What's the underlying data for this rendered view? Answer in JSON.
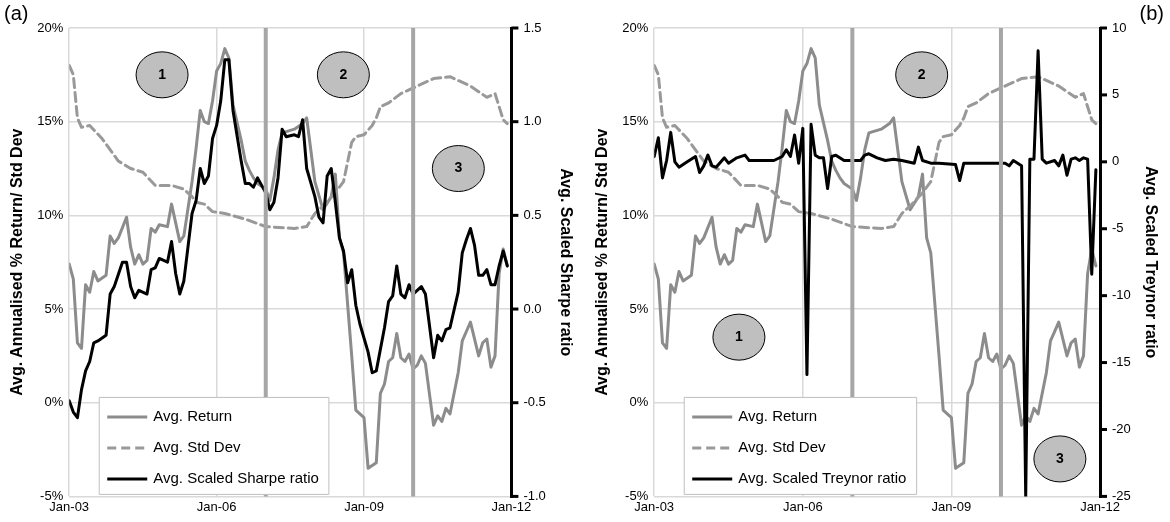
{
  "chart_data": [
    {
      "type": "line",
      "title": "(a)",
      "ylabel": "Avg. Annualised % Return/ Std Dev",
      "y2label": "Avg. Scaled Sharpe ratio",
      "marker": "none",
      "grid": true,
      "legend": "bottom left",
      "xlim": [
        "2003-01",
        "2012-01"
      ],
      "xticks": [
        {
          "value": "2003-01",
          "label": "Jan-03"
        },
        {
          "value": "2006-01",
          "label": "Jan-06"
        },
        {
          "value": "2009-01",
          "label": "Jan-09"
        },
        {
          "value": "2012-01",
          "label": "Jan-12"
        }
      ],
      "ylim": [
        -5,
        20
      ],
      "yticks": [
        {
          "value": -5,
          "label": "-5%"
        },
        {
          "value": 0,
          "label": "0%"
        },
        {
          "value": 5,
          "label": "5%"
        },
        {
          "value": 10,
          "label": "10%"
        },
        {
          "value": 15,
          "label": "15%"
        },
        {
          "value": 20,
          "label": "20%"
        }
      ],
      "y2lim": [
        -1,
        1.5
      ],
      "y2ticks": [
        {
          "value": -1,
          "label": "-1.0"
        },
        {
          "value": -0.5,
          "label": "-0.5"
        },
        {
          "value": 0,
          "label": "0.0"
        },
        {
          "value": 0.5,
          "label": "0.5"
        },
        {
          "value": 1,
          "label": "1.0"
        },
        {
          "value": 1.5,
          "label": "1.5"
        }
      ],
      "ref_lines": [
        {
          "axis": "x",
          "value": "2007-01",
          "color": "#a6a6a6"
        },
        {
          "axis": "x",
          "value": "2010-01",
          "color": "#a6a6a6"
        }
      ],
      "annotations": [
        "1",
        "2",
        "3"
      ],
      "series": [
        {
          "name": "Avg. Return",
          "color": "#8c8c8c",
          "line_style": "solid",
          "x": [
            "2003-01",
            "2003-02",
            "2003-03",
            "2003-04",
            "2003-05",
            "2003-06",
            "2003-07",
            "2003-08",
            "2003-10",
            "2003-11",
            "2003-12",
            "2004-01",
            "2004-03",
            "2004-04",
            "2004-05",
            "2004-06",
            "2004-07",
            "2004-08",
            "2004-09",
            "2004-10",
            "2004-11",
            "2005-01",
            "2005-02",
            "2005-04",
            "2005-05",
            "2005-07",
            "2005-08",
            "2005-09",
            "2005-10",
            "2005-11",
            "2005-12",
            "2006-01",
            "2006-02",
            "2006-03",
            "2006-04",
            "2006-05",
            "2006-07",
            "2006-08",
            "2006-09",
            "2006-10",
            "2006-11",
            "2007-01",
            "2007-02",
            "2007-03",
            "2007-04",
            "2007-05",
            "2007-08",
            "2007-10",
            "2007-11",
            "2007-12",
            "2008-01",
            "2008-03",
            "2008-05",
            "2008-06",
            "2008-07",
            "2008-08",
            "2008-10",
            "2008-11",
            "2009-01",
            "2009-02",
            "2009-04",
            "2009-05",
            "2009-06",
            "2009-07",
            "2009-08",
            "2009-09",
            "2009-10",
            "2009-11",
            "2009-12",
            "2010-01",
            "2010-02",
            "2010-03",
            "2010-04",
            "2010-06",
            "2010-07",
            "2010-08",
            "2010-09",
            "2010-10",
            "2010-12",
            "2011-01",
            "2011-02",
            "2011-03",
            "2011-05",
            "2011-06",
            "2011-07",
            "2011-08",
            "2011-09",
            "2011-10",
            "2011-11",
            "2011-12"
          ],
          "values": [
            7.4,
            6.6,
            3.2,
            2.9,
            6.3,
            5.9,
            7.0,
            6.5,
            6.8,
            8.9,
            8.5,
            8.8,
            9.9,
            8.3,
            7.4,
            7.9,
            7.4,
            7.6,
            9.3,
            9.1,
            9.5,
            9.4,
            10.6,
            8.6,
            8.9,
            11.8,
            13.6,
            15.6,
            15.0,
            14.9,
            16.1,
            17.7,
            18.1,
            18.9,
            18.4,
            15.9,
            14.0,
            12.9,
            12.4,
            12.0,
            11.7,
            11.4,
            10.8,
            12.0,
            13.5,
            14.4,
            14.6,
            14.9,
            15.2,
            13.5,
            11.8,
            10.3,
            11.0,
            12.2,
            8.8,
            8.0,
            2.5,
            -0.4,
            -0.8,
            -3.5,
            -3.2,
            0.5,
            1.0,
            2.2,
            2.4,
            3.7,
            2.4,
            2.2,
            2.6,
            1.8,
            2.0,
            2.5,
            2.1,
            -1.2,
            -0.7,
            -1.0,
            -0.3,
            -0.6,
            1.6,
            3.3,
            3.8,
            4.3,
            2.5,
            3.2,
            3.4,
            1.9,
            2.5,
            6.9,
            8.2,
            7.3
          ]
        },
        {
          "name": "Avg. Std Dev",
          "color": "#999999",
          "line_style": "dashed",
          "x": [
            "2003-01",
            "2003-02",
            "2003-03",
            "2003-04",
            "2003-06",
            "2003-09",
            "2004-01",
            "2004-04",
            "2004-07",
            "2004-10",
            "2005-02",
            "2005-05",
            "2005-07",
            "2005-08",
            "2005-10",
            "2005-12",
            "2006-03",
            "2006-08",
            "2007-01",
            "2007-08",
            "2007-11",
            "2008-01",
            "2008-03",
            "2008-06",
            "2008-08",
            "2008-10",
            "2008-11",
            "2009-01",
            "2009-03",
            "2009-04",
            "2009-05",
            "2009-07",
            "2009-10",
            "2010-01",
            "2010-03",
            "2010-06",
            "2010-10",
            "2010-12",
            "2011-03",
            "2011-05",
            "2011-07",
            "2011-09",
            "2011-10",
            "2011-11",
            "2011-12"
          ],
          "values": [
            18.0,
            17.5,
            15.2,
            14.7,
            14.8,
            14.1,
            12.9,
            12.5,
            12.3,
            11.6,
            11.6,
            11.4,
            11.0,
            10.7,
            10.6,
            10.2,
            10.1,
            9.8,
            9.4,
            9.3,
            9.4,
            10.1,
            10.5,
            11.2,
            11.8,
            13.9,
            14.2,
            14.3,
            14.8,
            15.2,
            15.8,
            16.0,
            16.5,
            16.8,
            17.0,
            17.3,
            17.4,
            17.2,
            16.9,
            16.6,
            16.3,
            16.5,
            15.8,
            15.1,
            14.9
          ]
        },
        {
          "name": "Avg. Scaled Sharpe ratio",
          "color": "#000000",
          "line_style": "solid",
          "axis": "y2",
          "x": [
            "2003-01",
            "2003-02",
            "2003-03",
            "2003-04",
            "2003-05",
            "2003-06",
            "2003-07",
            "2003-08",
            "2003-10",
            "2003-11",
            "2003-12",
            "2004-02",
            "2004-03",
            "2004-04",
            "2004-05",
            "2004-06",
            "2004-08",
            "2004-09",
            "2004-10",
            "2004-11",
            "2005-01",
            "2005-02",
            "2005-03",
            "2005-04",
            "2005-05",
            "2005-07",
            "2005-08",
            "2005-09",
            "2005-10",
            "2005-11",
            "2005-12",
            "2006-01",
            "2006-02",
            "2006-03",
            "2006-04",
            "2006-05",
            "2006-07",
            "2006-08",
            "2006-09",
            "2006-10",
            "2006-11",
            "2007-01",
            "2007-02",
            "2007-03",
            "2007-04",
            "2007-05",
            "2007-06",
            "2007-08",
            "2007-09",
            "2007-10",
            "2007-11",
            "2008-01",
            "2008-02",
            "2008-03",
            "2008-04",
            "2008-05",
            "2008-06",
            "2008-07",
            "2008-08",
            "2008-09",
            "2008-10",
            "2008-11",
            "2008-12",
            "2009-02",
            "2009-03",
            "2009-04",
            "2009-06",
            "2009-07",
            "2009-08",
            "2009-09",
            "2009-10",
            "2009-11",
            "2009-12",
            "2010-01",
            "2010-03",
            "2010-04",
            "2010-06",
            "2010-07",
            "2010-08",
            "2010-09",
            "2010-10",
            "2010-12",
            "2011-01",
            "2011-02",
            "2011-03",
            "2011-04",
            "2011-05",
            "2011-06",
            "2011-07",
            "2011-08",
            "2011-09",
            "2011-10",
            "2011-11",
            "2011-12"
          ],
          "values": [
            -0.49,
            -0.55,
            -0.58,
            -0.43,
            -0.33,
            -0.28,
            -0.18,
            -0.17,
            -0.14,
            0.08,
            0.12,
            0.25,
            0.25,
            0.12,
            0.06,
            0.1,
            0.08,
            0.21,
            0.22,
            0.27,
            0.25,
            0.36,
            0.19,
            0.08,
            0.15,
            0.51,
            0.58,
            0.75,
            0.67,
            0.71,
            0.91,
            0.98,
            1.11,
            1.33,
            1.33,
            1.06,
            0.79,
            0.67,
            0.67,
            0.65,
            0.7,
            0.62,
            0.53,
            0.57,
            0.7,
            0.96,
            0.92,
            0.93,
            0.92,
            1.01,
            0.75,
            0.6,
            0.49,
            0.46,
            0.71,
            0.75,
            0.57,
            0.38,
            0.31,
            0.14,
            0.21,
            0.02,
            -0.08,
            -0.23,
            -0.34,
            -0.33,
            -0.1,
            0.04,
            0.07,
            0.23,
            0.08,
            0.06,
            0.13,
            0.08,
            0.12,
            0.08,
            -0.26,
            -0.14,
            -0.17,
            -0.11,
            -0.1,
            0.09,
            0.3,
            0.37,
            0.43,
            0.34,
            0.18,
            0.18,
            0.21,
            0.13,
            0.13,
            0.23,
            0.31,
            0.23
          ]
        }
      ]
    },
    {
      "type": "line",
      "title": "(b)",
      "ylabel": "Avg. Annualised % Return/ Std Dev",
      "y2label": "Avg. Scaled Treynor ratio",
      "marker": "none",
      "grid": true,
      "legend": "bottom left",
      "xlim": [
        "2003-01",
        "2012-01"
      ],
      "xticks": [
        {
          "value": "2003-01",
          "label": "Jan-03"
        },
        {
          "value": "2006-01",
          "label": "Jan-06"
        },
        {
          "value": "2009-01",
          "label": "Jan-09"
        },
        {
          "value": "2012-01",
          "label": "Jan-12"
        }
      ],
      "ylim": [
        -5,
        20
      ],
      "yticks": [
        {
          "value": -5,
          "label": "-5%"
        },
        {
          "value": 0,
          "label": "0%"
        },
        {
          "value": 5,
          "label": "5%"
        },
        {
          "value": 10,
          "label": "10%"
        },
        {
          "value": 15,
          "label": "15%"
        },
        {
          "value": 20,
          "label": "20%"
        }
      ],
      "y2lim": [
        -25,
        10
      ],
      "y2ticks": [
        -25,
        -20,
        -15,
        -10,
        -5,
        0,
        5,
        10
      ],
      "ref_lines": [
        {
          "axis": "x",
          "value": "2007-01",
          "color": "#a6a6a6"
        },
        {
          "axis": "x",
          "value": "2010-01",
          "color": "#a6a6a6"
        }
      ],
      "annotations": [
        "1",
        "2",
        "3"
      ],
      "series": [
        {
          "name": "Avg. Return",
          "color": "#8c8c8c",
          "line_style": "solid",
          "x": [
            "2003-01",
            "2003-02",
            "2003-03",
            "2003-04",
            "2003-05",
            "2003-06",
            "2003-07",
            "2003-08",
            "2003-10",
            "2003-11",
            "2003-12",
            "2004-01",
            "2004-03",
            "2004-04",
            "2004-05",
            "2004-06",
            "2004-07",
            "2004-08",
            "2004-09",
            "2004-10",
            "2004-11",
            "2005-01",
            "2005-02",
            "2005-04",
            "2005-05",
            "2005-07",
            "2005-08",
            "2005-09",
            "2005-10",
            "2005-11",
            "2005-12",
            "2006-01",
            "2006-02",
            "2006-03",
            "2006-04",
            "2006-05",
            "2006-07",
            "2006-08",
            "2006-09",
            "2006-10",
            "2006-11",
            "2007-01",
            "2007-02",
            "2007-03",
            "2007-04",
            "2007-05",
            "2007-08",
            "2007-10",
            "2007-11",
            "2007-12",
            "2008-01",
            "2008-03",
            "2008-05",
            "2008-06",
            "2008-07",
            "2008-08",
            "2008-10",
            "2008-11",
            "2009-01",
            "2009-02",
            "2009-04",
            "2009-05",
            "2009-06",
            "2009-07",
            "2009-08",
            "2009-09",
            "2009-10",
            "2009-11",
            "2009-12",
            "2010-01",
            "2010-02",
            "2010-03",
            "2010-04",
            "2010-06",
            "2010-07",
            "2010-08",
            "2010-09",
            "2010-10",
            "2010-12",
            "2011-01",
            "2011-02",
            "2011-03",
            "2011-05",
            "2011-06",
            "2011-07",
            "2011-08",
            "2011-09",
            "2011-10",
            "2011-11",
            "2011-12"
          ],
          "values": [
            7.4,
            6.6,
            3.2,
            2.9,
            6.3,
            5.9,
            7.0,
            6.5,
            6.8,
            8.9,
            8.5,
            8.8,
            9.9,
            8.3,
            7.4,
            7.9,
            7.4,
            7.6,
            9.3,
            9.1,
            9.5,
            9.4,
            10.6,
            8.6,
            8.9,
            11.8,
            13.6,
            15.6,
            15.0,
            14.9,
            16.1,
            17.7,
            18.1,
            18.9,
            18.4,
            15.9,
            14.0,
            12.9,
            12.4,
            12.0,
            11.7,
            11.4,
            10.8,
            12.0,
            13.5,
            14.4,
            14.6,
            14.9,
            15.2,
            13.5,
            11.8,
            10.3,
            11.0,
            12.2,
            8.8,
            8.0,
            2.5,
            -0.4,
            -0.8,
            -3.5,
            -3.2,
            0.5,
            1.0,
            2.2,
            2.4,
            3.7,
            2.4,
            2.2,
            2.6,
            1.8,
            2.0,
            2.5,
            2.1,
            -1.2,
            -0.7,
            -1.0,
            -0.3,
            -0.6,
            1.6,
            3.3,
            3.8,
            4.3,
            2.5,
            3.2,
            3.4,
            1.9,
            2.5,
            6.9,
            8.2,
            7.3
          ]
        },
        {
          "name": "Avg. Std Dev",
          "color": "#999999",
          "line_style": "dashed",
          "x": [
            "2003-01",
            "2003-02",
            "2003-03",
            "2003-04",
            "2003-06",
            "2003-09",
            "2004-01",
            "2004-04",
            "2004-07",
            "2004-10",
            "2005-02",
            "2005-05",
            "2005-07",
            "2005-08",
            "2005-10",
            "2005-12",
            "2006-03",
            "2006-08",
            "2007-01",
            "2007-08",
            "2007-11",
            "2008-01",
            "2008-03",
            "2008-06",
            "2008-08",
            "2008-10",
            "2008-11",
            "2009-01",
            "2009-03",
            "2009-04",
            "2009-05",
            "2009-07",
            "2009-10",
            "2010-01",
            "2010-03",
            "2010-06",
            "2010-10",
            "2010-12",
            "2011-03",
            "2011-05",
            "2011-07",
            "2011-09",
            "2011-10",
            "2011-11",
            "2011-12"
          ],
          "values": [
            18.0,
            17.5,
            15.2,
            14.7,
            14.8,
            14.1,
            12.9,
            12.5,
            12.3,
            11.6,
            11.6,
            11.4,
            11.0,
            10.7,
            10.6,
            10.2,
            10.1,
            9.8,
            9.4,
            9.3,
            9.4,
            10.1,
            10.5,
            11.2,
            11.8,
            13.9,
            14.2,
            14.3,
            14.8,
            15.2,
            15.8,
            16.0,
            16.5,
            16.8,
            17.0,
            17.3,
            17.4,
            17.2,
            16.9,
            16.6,
            16.3,
            16.5,
            15.8,
            15.1,
            14.9
          ]
        },
        {
          "name": "Avg. Scaled Treynor ratio",
          "color": "#000000",
          "line_style": "solid",
          "axis": "y2",
          "x": [
            "2003-01",
            "2003-02",
            "2003-03",
            "2003-04",
            "2003-05",
            "2003-06",
            "2003-07",
            "2003-09",
            "2003-11",
            "2003-12",
            "2004-01",
            "2004-02",
            "2004-03",
            "2004-04",
            "2004-06",
            "2004-07",
            "2004-09",
            "2004-11",
            "2004-12",
            "2005-02",
            "2005-06",
            "2005-08",
            "2005-09",
            "2005-10",
            "2005-11",
            "2005-12",
            "2006-01",
            "2006-02",
            "2006-03",
            "2006-04",
            "2006-05",
            "2006-06",
            "2006-07",
            "2006-08",
            "2006-09",
            "2006-11",
            "2007-03",
            "2007-04",
            "2007-05",
            "2007-07",
            "2007-09",
            "2007-11",
            "2008-01",
            "2008-04",
            "2008-05",
            "2008-06",
            "2008-08",
            "2008-10",
            "2009-02",
            "2009-03",
            "2009-04",
            "2009-07",
            "2009-11",
            "2010-02",
            "2010-03",
            "2010-04",
            "2010-06",
            "2010-07",
            "2010-08",
            "2010-09",
            "2010-10",
            "2010-11",
            "2010-12",
            "2011-02",
            "2011-03",
            "2011-04",
            "2011-05",
            "2011-06",
            "2011-07",
            "2011-08",
            "2011-09",
            "2011-10",
            "2011-11",
            "2011-12"
          ],
          "values": [
            0.4,
            1.8,
            -1.2,
            0.1,
            2.2,
            0,
            -0.4,
            0,
            0.4,
            -0.8,
            -0.3,
            0.5,
            -0.3,
            -0.4,
            0.3,
            -0.1,
            0.3,
            0.5,
            0.1,
            0.1,
            0.1,
            0.4,
            0.9,
            0.4,
            2.0,
            -0.1,
            2.5,
            -15.9,
            2.8,
            0.5,
            0.3,
            0.3,
            -2.0,
            0.4,
            0.5,
            0.1,
            0.1,
            0.5,
            0.6,
            0.3,
            0.1,
            0.2,
            0.1,
            -0.1,
            1.1,
            0.1,
            -0.1,
            -0.1,
            -0.2,
            -1.4,
            -0.1,
            -0.1,
            -0.1,
            -0.1,
            -0.3,
            0.1,
            -0.3,
            -25,
            0.2,
            0.2,
            8.3,
            0.2,
            -0.1,
            0.1,
            -0.3,
            0.5,
            -1.0,
            0.2,
            0.3,
            0.1,
            0.3,
            0.2,
            -8.4,
            -0.6
          ]
        }
      ]
    }
  ]
}
